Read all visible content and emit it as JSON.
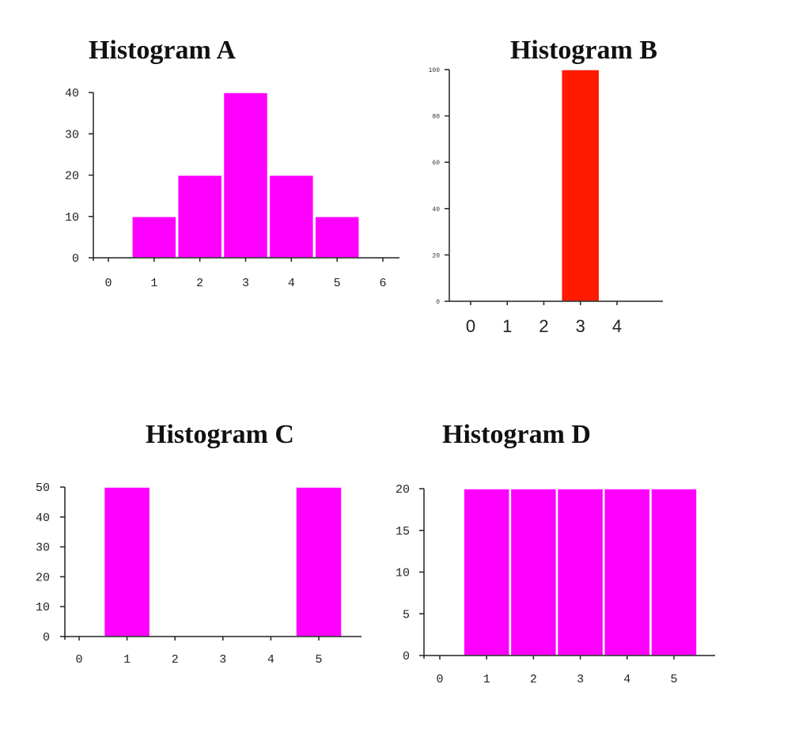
{
  "chart_data": [
    {
      "type": "bar",
      "title": "Histogram A",
      "x": [
        1,
        2,
        3,
        4,
        5
      ],
      "values": [
        10,
        20,
        40,
        20,
        10
      ],
      "xticks": [
        "0",
        "1",
        "2",
        "3",
        "4",
        "5",
        "6"
      ],
      "yticks": [
        "0",
        "10",
        "20",
        "30",
        "40"
      ],
      "xlim": [
        0,
        6
      ],
      "ylim": [
        0,
        40
      ],
      "bar_color": "#FF00FF",
      "grid": false
    },
    {
      "type": "bar",
      "title": "Histogram B",
      "x": [
        3
      ],
      "values": [
        100
      ],
      "xticks": [
        "0",
        "1",
        "2",
        "3",
        "4"
      ],
      "yticks": [
        "0",
        "20",
        "40",
        "60",
        "80",
        "100"
      ],
      "xlim": [
        0,
        4
      ],
      "ylim": [
        0,
        100
      ],
      "bar_color": "#FF1A00",
      "grid": false
    },
    {
      "type": "bar",
      "title": "Histogram C",
      "x": [
        1,
        5
      ],
      "values": [
        50,
        50
      ],
      "xticks": [
        "0",
        "1",
        "2",
        "3",
        "4",
        "5"
      ],
      "yticks": [
        "0",
        "10",
        "20",
        "30",
        "40",
        "50"
      ],
      "xlim": [
        0,
        5
      ],
      "ylim": [
        0,
        50
      ],
      "bar_color": "#FF00FF",
      "grid": false
    },
    {
      "type": "bar",
      "title": "Histogram D",
      "x": [
        1,
        2,
        3,
        4,
        5
      ],
      "values": [
        20,
        20,
        20,
        20,
        20
      ],
      "xticks": [
        "0",
        "1",
        "2",
        "3",
        "4",
        "5"
      ],
      "yticks": [
        "0",
        "5",
        "10",
        "15",
        "20"
      ],
      "xlim": [
        0,
        5
      ],
      "ylim": [
        0,
        20
      ],
      "bar_color": "#FF00FF",
      "grid": false
    }
  ]
}
